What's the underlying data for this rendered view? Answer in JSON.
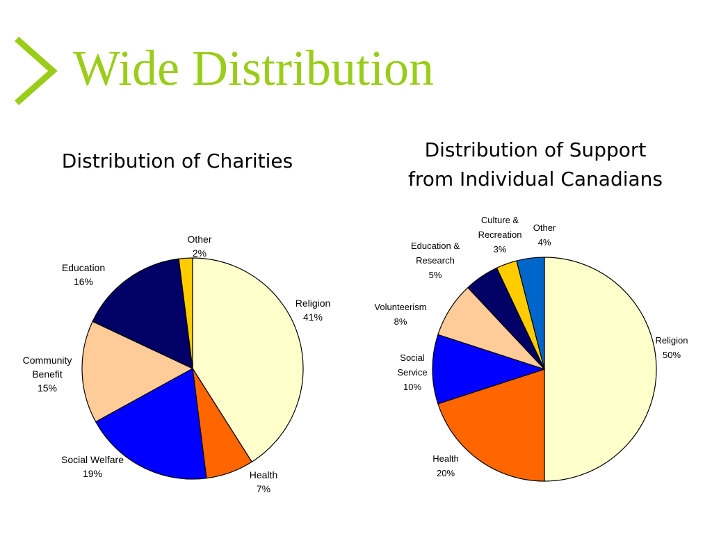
{
  "slide": {
    "title": "Wide Distribution",
    "accent_color": "#9ACD1A",
    "bullet_icon": "chevron-right-icon"
  },
  "chart_data": [
    {
      "type": "pie",
      "title": "Distribution of Charities",
      "slices": [
        {
          "label": "Religion",
          "value": 41,
          "value_label": "41%",
          "color": "#FFFFCC"
        },
        {
          "label": "Health",
          "value": 7,
          "value_label": "7%",
          "color": "#FF6600"
        },
        {
          "label": "Social Welfare",
          "value": 19,
          "value_label": "19%",
          "color": "#0000FF"
        },
        {
          "label": "Community\nBenefit",
          "value": 15,
          "value_label": "15%",
          "color": "#FFCC99"
        },
        {
          "label": "Education",
          "value": 16,
          "value_label": "16%",
          "color": "#000066"
        },
        {
          "label": "Other",
          "value": 2,
          "value_label": "2%",
          "color": "#FFCC00"
        }
      ]
    },
    {
      "type": "pie",
      "title": "Distribution of Support\nfrom Individual Canadians",
      "slices": [
        {
          "label": "Religion",
          "value": 50,
          "value_label": "50%",
          "color": "#FFFFCC"
        },
        {
          "label": "Health",
          "value": 20,
          "value_label": "20%",
          "color": "#FF6600"
        },
        {
          "label": "Social\nService",
          "value": 10,
          "value_label": "10%",
          "color": "#0000FF"
        },
        {
          "label": "Volunteerism",
          "value": 8,
          "value_label": "8%",
          "color": "#FFCC99"
        },
        {
          "label": "Education &\nResearch",
          "value": 5,
          "value_label": "5%",
          "color": "#000066"
        },
        {
          "label": "Culture &\nRecreation",
          "value": 3,
          "value_label": "3%",
          "color": "#FFCC00"
        },
        {
          "label": "Other",
          "value": 4,
          "value_label": "4%",
          "color": "#0066CC"
        }
      ]
    }
  ]
}
